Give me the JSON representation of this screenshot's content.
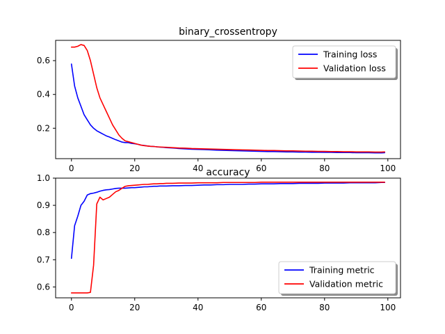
{
  "chart_data": [
    {
      "type": "line",
      "title": "binary_crossentropy",
      "xlabel": "",
      "ylabel": "",
      "xlim": [
        -5,
        104
      ],
      "ylim": [
        0.02,
        0.72
      ],
      "xticks": [
        0,
        20,
        40,
        60,
        80,
        100
      ],
      "yticks": [
        0.2,
        0.4,
        0.6
      ],
      "xtick_labels": [
        "0",
        "20",
        "40",
        "60",
        "80",
        "100"
      ],
      "ytick_labels": [
        "0.2",
        "0.4",
        "0.6"
      ],
      "grid": false,
      "legend_position": "top-right",
      "series": [
        {
          "name": "Training loss",
          "color": "#0000ff",
          "x": [
            0,
            1,
            2,
            3,
            4,
            5,
            6,
            7,
            8,
            9,
            10,
            11,
            12,
            13,
            14,
            15,
            16,
            17,
            18,
            19,
            20,
            21,
            22,
            23,
            24,
            25,
            26,
            27,
            28,
            29,
            30,
            32,
            34,
            36,
            38,
            40,
            42,
            44,
            46,
            48,
            50,
            52,
            54,
            56,
            58,
            60,
            62,
            64,
            66,
            68,
            70,
            72,
            74,
            76,
            78,
            80,
            82,
            84,
            86,
            88,
            90,
            92,
            94,
            96,
            98,
            99
          ],
          "values": [
            0.58,
            0.45,
            0.38,
            0.33,
            0.28,
            0.25,
            0.22,
            0.2,
            0.185,
            0.175,
            0.165,
            0.155,
            0.148,
            0.14,
            0.132,
            0.125,
            0.118,
            0.115,
            0.115,
            0.11,
            0.108,
            0.105,
            0.1,
            0.098,
            0.095,
            0.093,
            0.092,
            0.09,
            0.088,
            0.087,
            0.085,
            0.083,
            0.08,
            0.078,
            0.076,
            0.075,
            0.074,
            0.072,
            0.07,
            0.069,
            0.068,
            0.067,
            0.066,
            0.065,
            0.064,
            0.063,
            0.062,
            0.062,
            0.061,
            0.06,
            0.06,
            0.059,
            0.059,
            0.058,
            0.058,
            0.057,
            0.057,
            0.056,
            0.056,
            0.056,
            0.055,
            0.055,
            0.055,
            0.054,
            0.054,
            0.055
          ]
        },
        {
          "name": "Validation loss",
          "color": "#ff0000",
          "x": [
            0,
            1,
            2,
            3,
            4,
            5,
            6,
            7,
            8,
            9,
            10,
            11,
            12,
            13,
            14,
            15,
            16,
            17,
            18,
            19,
            20,
            21,
            22,
            23,
            24,
            25,
            26,
            27,
            28,
            29,
            30,
            32,
            34,
            36,
            38,
            40,
            42,
            44,
            46,
            48,
            50,
            52,
            54,
            56,
            58,
            60,
            62,
            64,
            66,
            68,
            70,
            72,
            74,
            76,
            78,
            80,
            82,
            84,
            86,
            88,
            90,
            92,
            94,
            96,
            98,
            99
          ],
          "values": [
            0.68,
            0.68,
            0.685,
            0.695,
            0.69,
            0.66,
            0.6,
            0.52,
            0.44,
            0.38,
            0.34,
            0.3,
            0.26,
            0.22,
            0.19,
            0.16,
            0.14,
            0.125,
            0.12,
            0.115,
            0.11,
            0.105,
            0.1,
            0.097,
            0.095,
            0.093,
            0.092,
            0.09,
            0.089,
            0.088,
            0.087,
            0.085,
            0.083,
            0.082,
            0.08,
            0.079,
            0.078,
            0.077,
            0.076,
            0.075,
            0.074,
            0.073,
            0.072,
            0.071,
            0.07,
            0.069,
            0.068,
            0.068,
            0.067,
            0.066,
            0.066,
            0.065,
            0.064,
            0.064,
            0.063,
            0.063,
            0.062,
            0.062,
            0.061,
            0.061,
            0.06,
            0.06,
            0.06,
            0.059,
            0.059,
            0.06
          ]
        }
      ]
    },
    {
      "type": "line",
      "title": "accuracy",
      "xlabel": "",
      "ylabel": "",
      "xlim": [
        -5,
        104
      ],
      "ylim": [
        0.56,
        1.0
      ],
      "xticks": [
        0,
        20,
        40,
        60,
        80,
        100
      ],
      "yticks": [
        0.6,
        0.7,
        0.8,
        0.9,
        1.0
      ],
      "xtick_labels": [
        "0",
        "20",
        "40",
        "60",
        "80",
        "100"
      ],
      "ytick_labels": [
        "0.6",
        "0.7",
        "0.8",
        "0.9",
        "1.0"
      ],
      "grid": false,
      "legend_position": "bottom-right",
      "series": [
        {
          "name": "Training metric",
          "color": "#0000ff",
          "x": [
            0,
            1,
            2,
            3,
            4,
            5,
            6,
            7,
            8,
            9,
            10,
            11,
            12,
            13,
            14,
            15,
            16,
            17,
            18,
            19,
            20,
            21,
            22,
            23,
            24,
            25,
            26,
            27,
            28,
            29,
            30,
            32,
            34,
            36,
            38,
            40,
            42,
            44,
            46,
            48,
            50,
            52,
            54,
            56,
            58,
            60,
            62,
            64,
            66,
            68,
            70,
            72,
            74,
            76,
            78,
            80,
            82,
            84,
            86,
            88,
            90,
            92,
            94,
            96,
            98,
            99
          ],
          "values": [
            0.705,
            0.825,
            0.86,
            0.9,
            0.915,
            0.938,
            0.943,
            0.945,
            0.948,
            0.952,
            0.955,
            0.957,
            0.958,
            0.96,
            0.962,
            0.963,
            0.963,
            0.963,
            0.964,
            0.965,
            0.965,
            0.966,
            0.967,
            0.968,
            0.968,
            0.969,
            0.97,
            0.97,
            0.971,
            0.971,
            0.971,
            0.972,
            0.972,
            0.973,
            0.973,
            0.974,
            0.975,
            0.975,
            0.976,
            0.976,
            0.977,
            0.977,
            0.977,
            0.978,
            0.978,
            0.979,
            0.979,
            0.979,
            0.98,
            0.98,
            0.98,
            0.981,
            0.981,
            0.981,
            0.981,
            0.982,
            0.982,
            0.982,
            0.982,
            0.983,
            0.983,
            0.983,
            0.983,
            0.983,
            0.984,
            0.984
          ]
        },
        {
          "name": "Validation metric",
          "color": "#ff0000",
          "x": [
            0,
            1,
            2,
            3,
            4,
            5,
            6,
            7,
            8,
            9,
            10,
            11,
            12,
            13,
            14,
            15,
            16,
            17,
            18,
            19,
            20,
            21,
            22,
            23,
            24,
            25,
            26,
            27,
            28,
            29,
            30,
            32,
            34,
            36,
            38,
            40,
            42,
            44,
            46,
            48,
            50,
            52,
            54,
            56,
            58,
            60,
            62,
            64,
            66,
            68,
            70,
            72,
            74,
            76,
            78,
            80,
            82,
            84,
            86,
            88,
            90,
            92,
            94,
            96,
            98,
            99
          ],
          "values": [
            0.578,
            0.578,
            0.578,
            0.578,
            0.578,
            0.578,
            0.58,
            0.68,
            0.905,
            0.93,
            0.92,
            0.925,
            0.93,
            0.94,
            0.95,
            0.955,
            0.963,
            0.97,
            0.972,
            0.973,
            0.974,
            0.975,
            0.976,
            0.977,
            0.977,
            0.978,
            0.979,
            0.979,
            0.98,
            0.98,
            0.981,
            0.981,
            0.982,
            0.982,
            0.982,
            0.983,
            0.983,
            0.983,
            0.983,
            0.984,
            0.984,
            0.984,
            0.984,
            0.984,
            0.984,
            0.985,
            0.985,
            0.985,
            0.985,
            0.985,
            0.985,
            0.985,
            0.985,
            0.985,
            0.985,
            0.985,
            0.985,
            0.985,
            0.985,
            0.985,
            0.985,
            0.985,
            0.985,
            0.985,
            0.985,
            0.985
          ]
        }
      ]
    }
  ]
}
